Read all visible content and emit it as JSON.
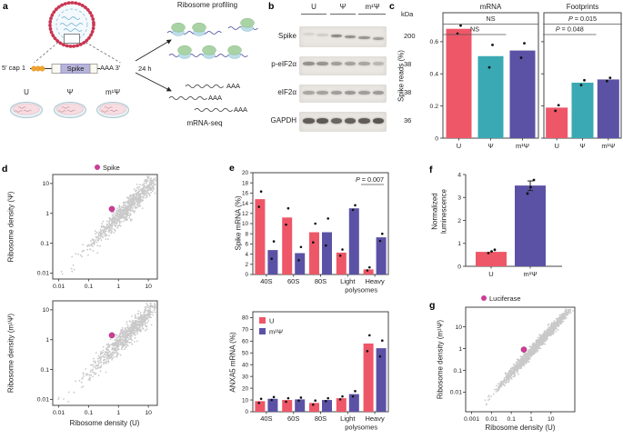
{
  "panels": {
    "a": "a",
    "b": "b",
    "c": "c",
    "d": "d",
    "e": "e",
    "f": "f",
    "g": "g"
  },
  "colors": {
    "red": "#EE5768",
    "teal": "#3AA9B3",
    "purple": "#5B52A6",
    "magenta": "#CC3D96",
    "gray_dot": "#c9c9c9"
  },
  "panel_a": {
    "construct_cap": "5′ cap 1",
    "construct_gene": "Spike",
    "construct_tail": "AAA 3′",
    "conditions": [
      "U",
      "Ψ",
      "m¹Ψ"
    ],
    "timepoint": "24 h",
    "ribosome_profiling_label": "Ribosome profiling",
    "mrna_seq_label": "mRNA-seq",
    "polya": "AAA"
  },
  "panel_b": {
    "lane_groups": [
      "U",
      "Ψ",
      "m¹Ψ"
    ],
    "kda_header": "kDa",
    "rows": [
      {
        "name": "Spike",
        "kda": "200",
        "band_y": 7,
        "band_h": 3,
        "tilt": 1,
        "lanes": [
          0.1,
          0.14,
          0.55,
          0.5,
          0.48,
          0.42
        ]
      },
      {
        "name": "p-eIF2α",
        "kda": "38",
        "band_y": 6,
        "band_h": 4,
        "tilt": 0,
        "lanes": [
          0.5,
          0.48,
          0.42,
          0.4,
          0.38,
          0.28
        ]
      },
      {
        "name": "eIF2α",
        "kda": "38",
        "band_y": 7,
        "band_h": 4,
        "tilt": 0,
        "lanes": [
          0.38,
          0.4,
          0.42,
          0.45,
          0.42,
          0.44
        ]
      },
      {
        "name": "GAPDH",
        "kda": "36",
        "band_y": 7,
        "band_h": 6,
        "tilt": 0,
        "lanes": [
          0.8,
          0.82,
          0.75,
          0.78,
          0.8,
          0.85
        ]
      }
    ]
  },
  "chart_data": [
    {
      "id": "c_mrna",
      "type": "bar",
      "title": "mRNA",
      "ylabel": "Spike reads (%)",
      "categories": [
        "U",
        "Ψ",
        "m¹Ψ"
      ],
      "values": [
        0.68,
        0.51,
        0.545
      ],
      "points": [
        [
          0.65,
          0.7
        ],
        [
          0.44,
          0.58
        ],
        [
          0.5,
          0.59
        ]
      ],
      "colors": [
        "red",
        "teal",
        "purple"
      ],
      "ylim": [
        0,
        0.78
      ],
      "yticks": [
        "0",
        "0.2",
        "0.4",
        "0.6"
      ],
      "ytick_vals": [
        0,
        0.2,
        0.4,
        0.6
      ],
      "annotations": [
        {
          "text": "NS",
          "from": 0,
          "to": 2
        },
        {
          "text": "NS",
          "from": 0,
          "to": 1
        }
      ]
    },
    {
      "id": "c_fp",
      "type": "bar",
      "title": "Footprints",
      "categories": [
        "U",
        "Ψ",
        "m¹Ψ"
      ],
      "values": [
        0.19,
        0.345,
        0.365
      ],
      "points": [
        [
          0.17,
          0.205
        ],
        [
          0.33,
          0.36
        ],
        [
          0.355,
          0.375
        ]
      ],
      "colors": [
        "red",
        "teal",
        "purple"
      ],
      "ylim": [
        0,
        0.78
      ],
      "ytick_vals": [
        0,
        0.2,
        0.4,
        0.6
      ],
      "annotations": [
        {
          "text": "P = 0.015",
          "from": 0,
          "to": 2
        },
        {
          "text": "P = 0.048",
          "from": 0,
          "to": 1
        }
      ]
    },
    {
      "id": "e_spike",
      "type": "groupbar",
      "ylabel": "Spike mRNA (%)",
      "categories": [
        "40S",
        "60S",
        "80S",
        "Light",
        "Heavy"
      ],
      "xlabel2": "polysomes",
      "series": [
        {
          "name": "U",
          "color": "red",
          "values": [
            14.8,
            11.2,
            8.3,
            4.3,
            1.0
          ],
          "points": [
            [
              13.3,
              16.3
            ],
            [
              9.8,
              13.0
            ],
            [
              6.3,
              10.0
            ],
            [
              3.7,
              4.9
            ],
            [
              0.8,
              1.4
            ]
          ]
        },
        {
          "name": "m¹Ψ",
          "color": "purple",
          "values": [
            4.8,
            4.2,
            8.3,
            13.0,
            7.3
          ],
          "points": [
            [
              3.1,
              6.5
            ],
            [
              2.8,
              5.4
            ],
            [
              5.7,
              11.0
            ],
            [
              12.7,
              13.6
            ],
            [
              6.6,
              8.0
            ]
          ]
        }
      ],
      "ylim": [
        0,
        20
      ],
      "ytick_step": 2,
      "ytick_max": 20,
      "annotation": {
        "text": "P = 0.007"
      }
    },
    {
      "id": "e_anxa5",
      "type": "groupbar",
      "ylabel": "ANXA5 mRNA (%)",
      "categories": [
        "40S",
        "60S",
        "80S",
        "Light",
        "Heavy"
      ],
      "xlabel2": "polysomes",
      "legend": [
        "U",
        "m¹Ψ"
      ],
      "series": [
        {
          "name": "U",
          "color": "red",
          "values": [
            9,
            10,
            7.5,
            11.5,
            58
          ],
          "points": [
            [
              7.5,
              11
            ],
            [
              8.5,
              11.5
            ],
            [
              6,
              9.5
            ],
            [
              10.5,
              13
            ],
            [
              51.5,
              65
            ]
          ]
        },
        {
          "name": "m¹Ψ",
          "color": "purple",
          "values": [
            11,
            10.5,
            10,
            15,
            54
          ],
          "points": [
            [
              10,
              12.5
            ],
            [
              9.5,
              12
            ],
            [
              9,
              11.5
            ],
            [
              13,
              17.5
            ],
            [
              47,
              60.5
            ]
          ]
        }
      ],
      "ylim": [
        0,
        85
      ],
      "ytick_step": 10,
      "ytick_max": 80
    },
    {
      "id": "f_lum",
      "type": "bar",
      "ylabel_lines": [
        "Normalized",
        "luminescence"
      ],
      "categories": [
        "U",
        "m¹Ψ"
      ],
      "values": [
        0.63,
        3.52
      ],
      "points": [
        [
          0.58,
          0.65,
          0.72
        ],
        [
          3.17,
          3.45,
          3.76
        ]
      ],
      "colors": [
        "red",
        "purple"
      ],
      "error": [
        null,
        [
          3.3,
          3.72
        ]
      ],
      "ylim": [
        0,
        4
      ],
      "ytick_vals": [
        0,
        1,
        2,
        3,
        4
      ],
      "yticks": [
        "0",
        "1",
        "2",
        "3",
        "4"
      ]
    },
    {
      "id": "d_psi",
      "type": "scatter",
      "ylabel": "Ribosome density (Ψ)",
      "xticks": [
        "0.01",
        "0.1",
        "1",
        "10"
      ],
      "yticks": [
        "0.01",
        "0.1",
        "1",
        "10"
      ],
      "xlog": [
        -2.2,
        1.3
      ],
      "ylog": [
        -2.2,
        1.3
      ],
      "highlight": {
        "label": "Spike",
        "x": 0.6,
        "y": 1.4
      },
      "cloud": {
        "n": 850,
        "seed": 7,
        "mu": 0.35,
        "sigma": 0.6,
        "noise": 0.17,
        "offset": -0.12
      }
    },
    {
      "id": "d_m1",
      "type": "scatter",
      "ylabel": "Ribosome density (m¹Ψ)",
      "xlabel": "Ribosome density (U)",
      "xticks": [
        "0.01",
        "0.1",
        "1",
        "10"
      ],
      "yticks": [
        "0.01",
        "0.1",
        "1",
        "10"
      ],
      "xlog": [
        -2.2,
        1.3
      ],
      "ylog": [
        -2.2,
        1.3
      ],
      "highlight": {
        "label": "Spike",
        "x": 0.6,
        "y": 1.4
      },
      "cloud": {
        "n": 850,
        "seed": 13,
        "mu": 0.35,
        "sigma": 0.6,
        "noise": 0.17,
        "offset": -0.12
      }
    },
    {
      "id": "g_sc",
      "type": "scatter",
      "legend": true,
      "ylabel": "Ribosome density (m¹Ψ)",
      "xlabel": "Ribosome density (U)",
      "xticks": [
        "0.001",
        "0.01",
        "0.1",
        "1",
        "10"
      ],
      "yticks": [
        "0.01",
        "0.1",
        "1",
        "10"
      ],
      "xlog": [
        -3.3,
        2.2
      ],
      "ylog": [
        -2.9,
        1.9
      ],
      "highlight": {
        "label": "Luciferase",
        "x": 0.43,
        "y": 0.9
      },
      "cloud": {
        "n": 1500,
        "seed": 21,
        "mu": 0.3,
        "sigma": 0.8,
        "noise": 0.12,
        "offset": -0.15
      }
    }
  ]
}
